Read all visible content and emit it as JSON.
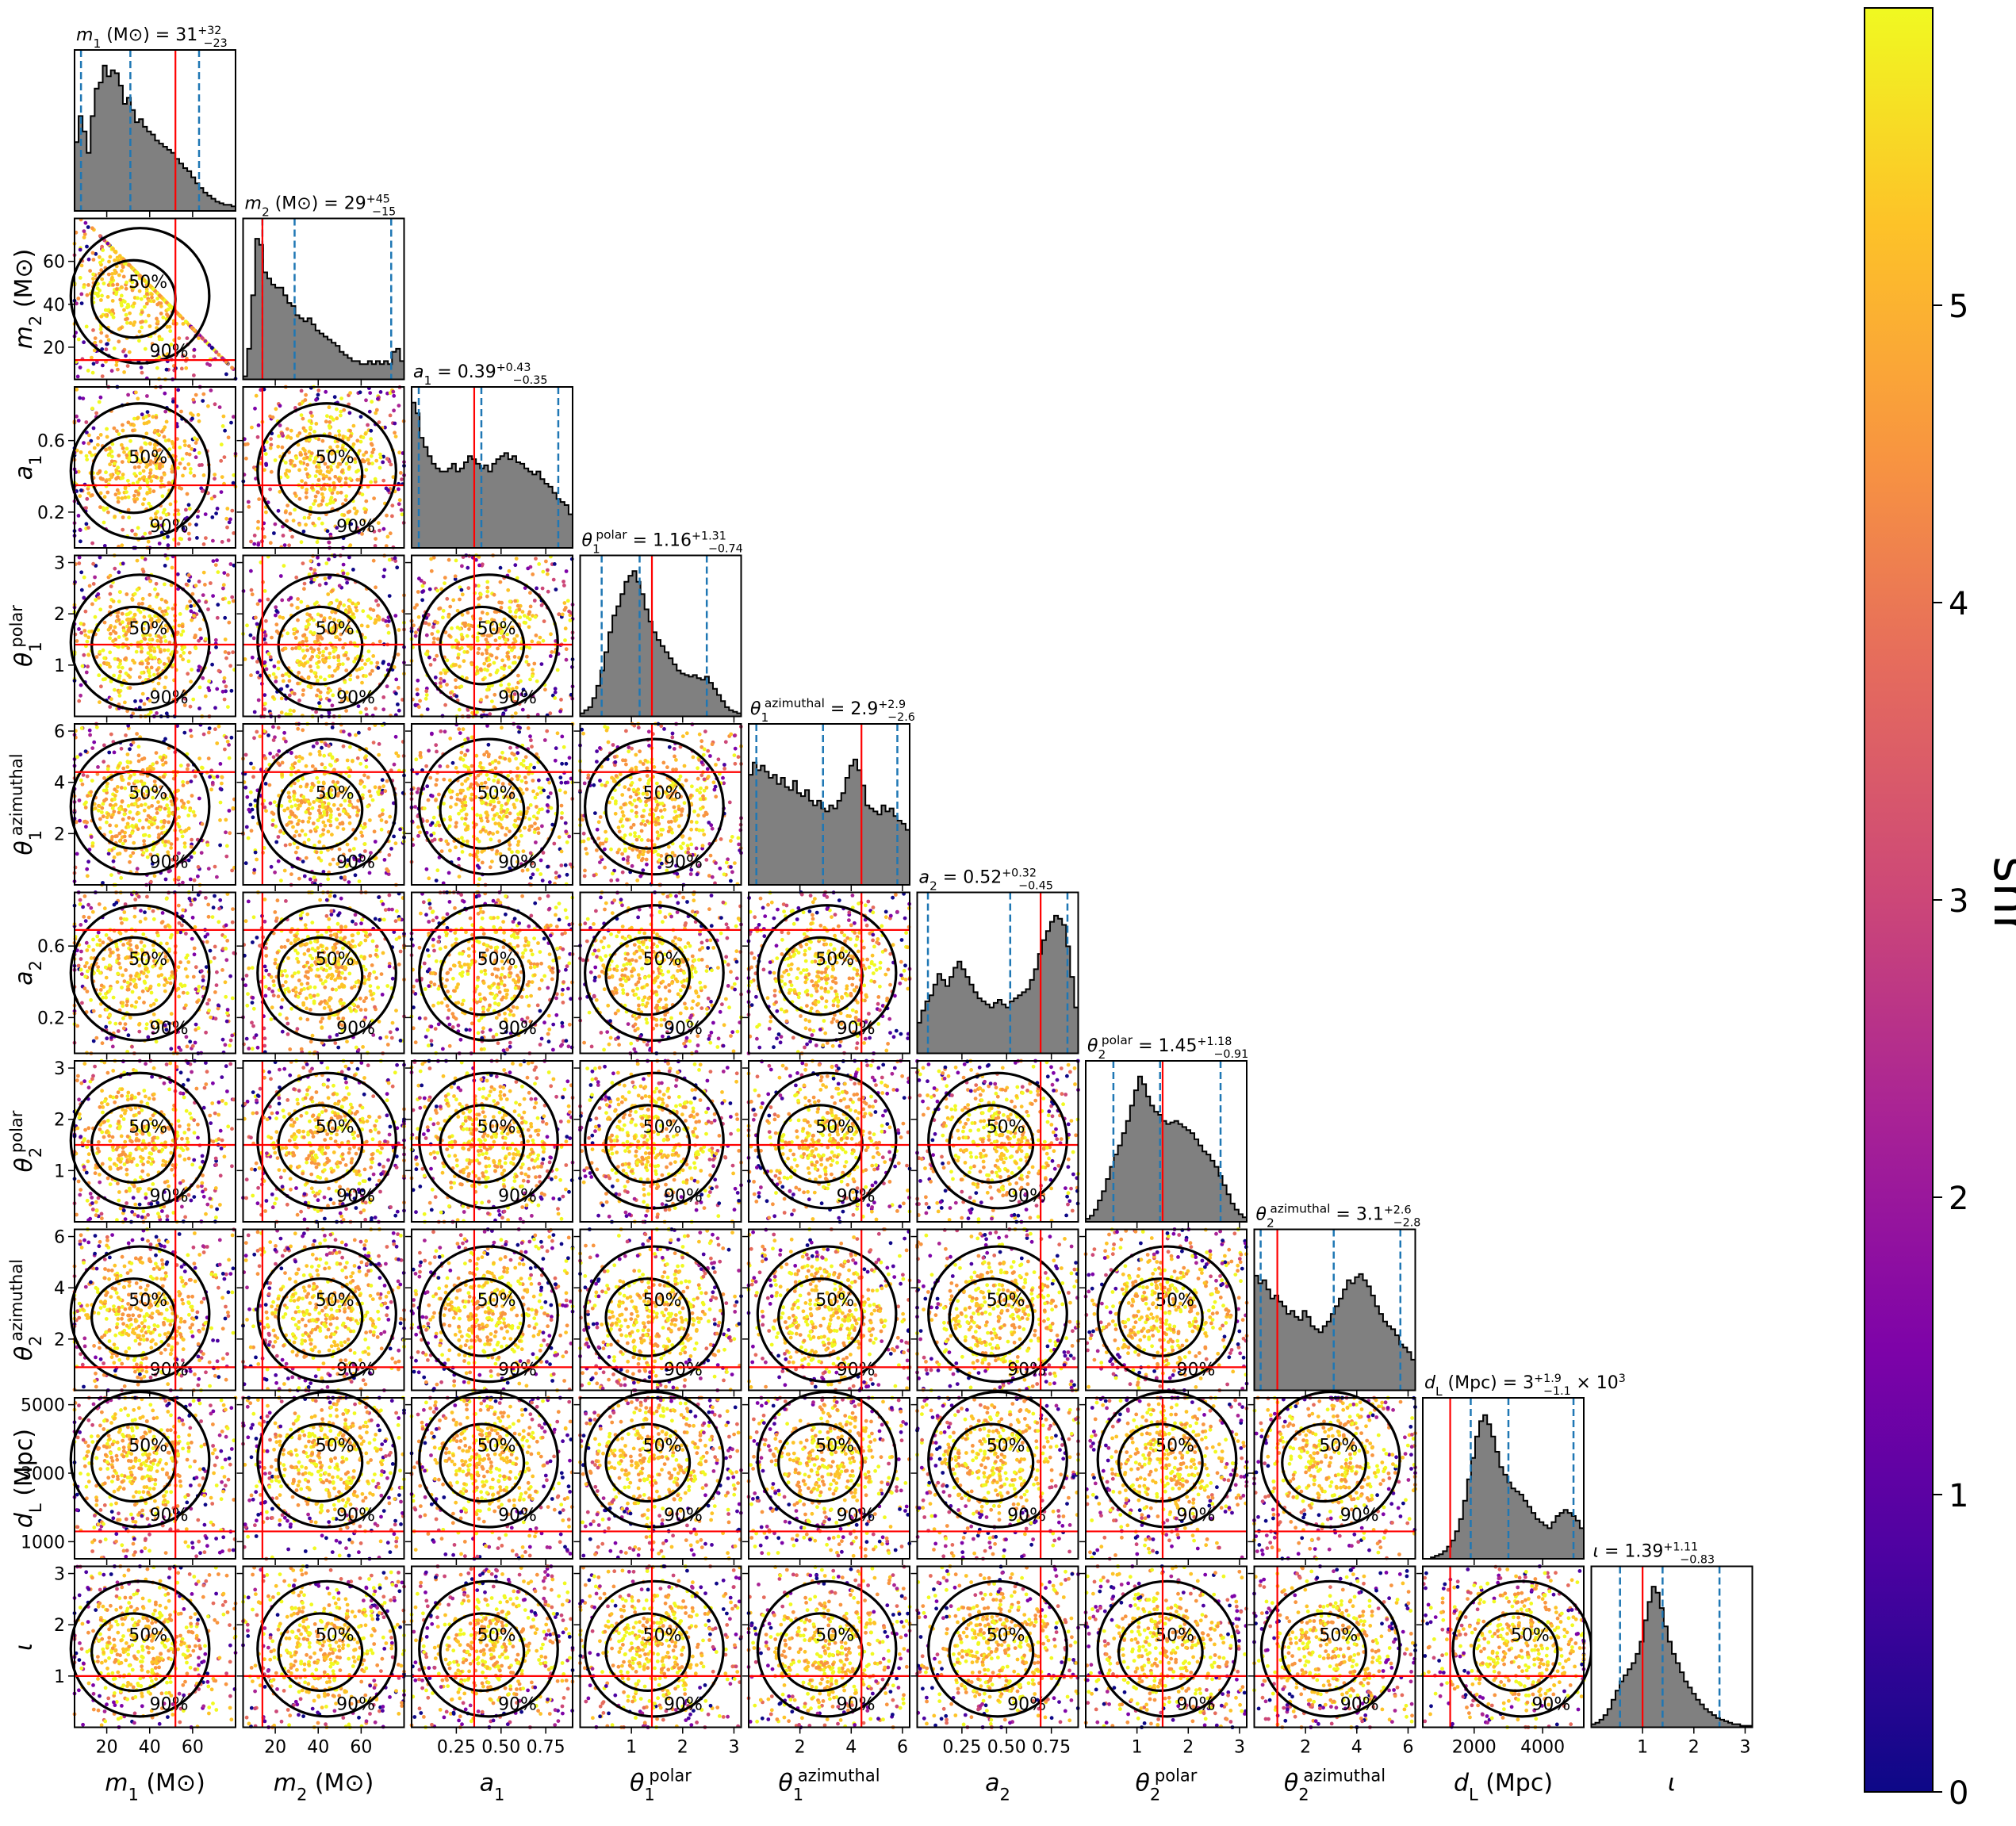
{
  "chart_data": {
    "type": "corner",
    "parameters": [
      {
        "key": "m1",
        "xlabel": "m₁ (M⊙)",
        "ylabel": "m₂ (M⊙)",
        "symbol": "m",
        "sub": "1",
        "suffix": " (M⊙)",
        "title": "m₁ (M⊙) = 31",
        "median": 31,
        "plus": "32",
        "minus": "23",
        "range": [
          5,
          80
        ],
        "ticks": [
          20,
          40,
          60
        ],
        "tick_labels": [
          "20",
          "40",
          "60"
        ],
        "truth": 52,
        "q_lo": 8,
        "q_hi": 63,
        "hist": [
          0.45,
          0.62,
          0.52,
          0.38,
          0.62,
          0.8,
          0.84,
          0.95,
          0.88,
          0.92,
          0.9,
          0.82,
          0.7,
          0.74,
          0.66,
          0.58,
          0.6,
          0.55,
          0.52,
          0.5,
          0.46,
          0.44,
          0.42,
          0.4,
          0.38,
          0.34,
          0.31,
          0.28,
          0.26,
          0.22,
          0.18,
          0.15,
          0.12,
          0.1,
          0.08,
          0.06,
          0.05,
          0.04,
          0.04,
          0.03
        ]
      },
      {
        "key": "m2",
        "xlabel": "m₂ (M⊙)",
        "symbol": "m",
        "sub": "2",
        "suffix": " (M⊙)",
        "title": "m₂ (M⊙) = 29",
        "median": 29,
        "plus": "45",
        "minus": "15",
        "range": [
          5,
          80
        ],
        "ticks": [
          20,
          40,
          60
        ],
        "tick_labels": [
          "20",
          "40",
          "60"
        ],
        "truth": 14,
        "q_lo": 14,
        "q_hi": 74,
        "hist": [
          0.02,
          0.2,
          0.55,
          0.92,
          0.88,
          0.7,
          0.66,
          0.62,
          0.6,
          0.6,
          0.55,
          0.5,
          0.48,
          0.42,
          0.4,
          0.38,
          0.4,
          0.36,
          0.32,
          0.3,
          0.28,
          0.26,
          0.24,
          0.22,
          0.18,
          0.16,
          0.14,
          0.12,
          0.12,
          0.1,
          0.1,
          0.12,
          0.1,
          0.12,
          0.1,
          0.12,
          0.1,
          0.18,
          0.2,
          0.12
        ]
      },
      {
        "key": "a1",
        "xlabel": "a₁",
        "symbol": "a",
        "sub": "1",
        "suffix": "",
        "title": "a₁ = 0.39",
        "median": 0.39,
        "plus": "0.43",
        "minus": "0.35",
        "range": [
          0,
          0.9
        ],
        "ticks": [
          0.25,
          0.5,
          0.75
        ],
        "tick_labels": [
          "0.25",
          "0.50",
          "0.75"
        ],
        "y_ticks": [
          0.2,
          0.6
        ],
        "y_tick_labels": [
          "0.2",
          "0.6"
        ],
        "truth": 0.35,
        "q_lo": 0.04,
        "q_hi": 0.82,
        "hist": [
          0.95,
          0.88,
          0.72,
          0.66,
          0.6,
          0.55,
          0.52,
          0.5,
          0.5,
          0.52,
          0.55,
          0.5,
          0.52,
          0.56,
          0.6,
          0.58,
          0.55,
          0.52,
          0.54,
          0.5,
          0.55,
          0.58,
          0.6,
          0.62,
          0.58,
          0.6,
          0.56,
          0.55,
          0.52,
          0.5,
          0.48,
          0.5,
          0.45,
          0.42,
          0.4,
          0.36,
          0.32,
          0.3,
          0.28,
          0.22
        ]
      },
      {
        "key": "t1p",
        "xlabel": "θ₁ polar",
        "symbol": "θ",
        "sub": "1",
        "sup": "polar",
        "suffix": "",
        "title": "θ₁polar = 1.16",
        "median": 1.16,
        "plus": "1.31",
        "minus": "0.74",
        "range": [
          0,
          3.14
        ],
        "ticks": [
          1,
          2,
          3
        ],
        "tick_labels": [
          "1",
          "2",
          "3"
        ],
        "truth": 1.4,
        "q_lo": 0.42,
        "q_hi": 2.47,
        "hist": [
          0.02,
          0.04,
          0.06,
          0.12,
          0.2,
          0.3,
          0.42,
          0.55,
          0.66,
          0.72,
          0.8,
          0.88,
          0.92,
          0.95,
          0.88,
          0.8,
          0.7,
          0.62,
          0.55,
          0.5,
          0.46,
          0.42,
          0.38,
          0.34,
          0.3,
          0.28,
          0.27,
          0.26,
          0.27,
          0.25,
          0.24,
          0.26,
          0.22,
          0.18,
          0.14,
          0.1,
          0.06,
          0.04,
          0.03,
          0.02
        ]
      },
      {
        "key": "t1a",
        "xlabel": "θ₁ azimuthal",
        "symbol": "θ",
        "sub": "1",
        "sup": "azimuthal",
        "suffix": "",
        "title": "θ₁azimuthal = 2.9",
        "median": 2.9,
        "plus": "2.9",
        "minus": "2.6",
        "range": [
          0,
          6.28
        ],
        "ticks": [
          2,
          4,
          6
        ],
        "tick_labels": [
          "2",
          "4",
          "6"
        ],
        "truth": 4.4,
        "q_lo": 0.3,
        "q_hi": 5.8,
        "hist": [
          0.72,
          0.8,
          0.75,
          0.78,
          0.74,
          0.7,
          0.72,
          0.66,
          0.7,
          0.64,
          0.62,
          0.68,
          0.6,
          0.58,
          0.62,
          0.55,
          0.52,
          0.55,
          0.5,
          0.48,
          0.52,
          0.5,
          0.55,
          0.6,
          0.7,
          0.78,
          0.82,
          0.75,
          0.65,
          0.52,
          0.5,
          0.48,
          0.46,
          0.52,
          0.48,
          0.5,
          0.45,
          0.42,
          0.4,
          0.36
        ]
      },
      {
        "key": "a2",
        "xlabel": "a₂",
        "symbol": "a",
        "sub": "2",
        "suffix": "",
        "title": "a₂ = 0.52",
        "median": 0.52,
        "plus": "0.32",
        "minus": "0.45",
        "range": [
          0,
          0.9
        ],
        "ticks": [
          0.25,
          0.5,
          0.75
        ],
        "tick_labels": [
          "0.25",
          "0.50",
          "0.75"
        ],
        "y_ticks": [
          0.2,
          0.6
        ],
        "y_tick_labels": [
          "0.2",
          "0.6"
        ],
        "truth": 0.69,
        "q_lo": 0.06,
        "q_hi": 0.84,
        "hist": [
          0.2,
          0.28,
          0.34,
          0.38,
          0.45,
          0.52,
          0.48,
          0.44,
          0.5,
          0.56,
          0.6,
          0.55,
          0.5,
          0.45,
          0.4,
          0.36,
          0.34,
          0.32,
          0.3,
          0.33,
          0.35,
          0.32,
          0.3,
          0.34,
          0.36,
          0.38,
          0.4,
          0.42,
          0.48,
          0.55,
          0.65,
          0.74,
          0.8,
          0.86,
          0.9,
          0.88,
          0.84,
          0.7,
          0.5,
          0.3
        ]
      },
      {
        "key": "t2p",
        "xlabel": "θ₂ polar",
        "symbol": "θ",
        "sub": "2",
        "sup": "polar",
        "suffix": "",
        "title": "θ₂polar = 1.45",
        "median": 1.45,
        "plus": "1.18",
        "minus": "0.91",
        "range": [
          0,
          3.14
        ],
        "ticks": [
          1,
          2,
          3
        ],
        "tick_labels": [
          "1",
          "2",
          "3"
        ],
        "truth": 1.5,
        "q_lo": 0.54,
        "q_hi": 2.63,
        "hist": [
          0.02,
          0.04,
          0.08,
          0.14,
          0.2,
          0.28,
          0.36,
          0.44,
          0.5,
          0.58,
          0.66,
          0.76,
          0.86,
          0.95,
          0.9,
          0.82,
          0.76,
          0.72,
          0.7,
          0.66,
          0.64,
          0.65,
          0.66,
          0.64,
          0.62,
          0.6,
          0.58,
          0.54,
          0.5,
          0.46,
          0.44,
          0.4,
          0.36,
          0.3,
          0.24,
          0.18,
          0.12,
          0.08,
          0.05,
          0.03
        ]
      },
      {
        "key": "t2a",
        "xlabel": "θ₂ azimuthal",
        "symbol": "θ",
        "sub": "2",
        "sup": "azimuthal",
        "suffix": "",
        "title": "θ₂azimuthal = 3.1",
        "median": 3.1,
        "plus": "2.6",
        "minus": "2.8",
        "range": [
          0,
          6.28
        ],
        "ticks": [
          2,
          4,
          6
        ],
        "tick_labels": [
          "2",
          "4",
          "6"
        ],
        "truth": 0.9,
        "q_lo": 0.25,
        "q_hi": 5.7,
        "hist": [
          0.75,
          0.7,
          0.72,
          0.66,
          0.6,
          0.62,
          0.58,
          0.55,
          0.5,
          0.52,
          0.48,
          0.46,
          0.52,
          0.48,
          0.42,
          0.4,
          0.38,
          0.42,
          0.45,
          0.5,
          0.55,
          0.6,
          0.66,
          0.72,
          0.7,
          0.74,
          0.76,
          0.72,
          0.68,
          0.62,
          0.55,
          0.5,
          0.45,
          0.42,
          0.4,
          0.36,
          0.3,
          0.28,
          0.25,
          0.2
        ]
      },
      {
        "key": "dL",
        "xlabel": "d_L (Mpc)",
        "symbol": "d",
        "sub": "L",
        "suffix": " (Mpc)",
        "title": "d_L (Mpc) = 3",
        "median": 3000,
        "plus": "1.9",
        "minus": "1.1",
        "title_tail": "× 10",
        "title_exp": "3",
        "range": [
          500,
          5200
        ],
        "ticks": [
          2000,
          4000
        ],
        "tick_labels": [
          "2000",
          "4000"
        ],
        "y_ticks": [
          1000,
          3000,
          5000
        ],
        "y_tick_labels": [
          "1000",
          "3000",
          "5000"
        ],
        "truth": 1300,
        "q_lo": 1900,
        "q_hi": 4900,
        "hist": [
          0.0,
          0.0,
          0.01,
          0.02,
          0.03,
          0.05,
          0.08,
          0.12,
          0.18,
          0.26,
          0.38,
          0.52,
          0.66,
          0.8,
          0.9,
          0.94,
          0.88,
          0.8,
          0.7,
          0.6,
          0.55,
          0.5,
          0.46,
          0.44,
          0.42,
          0.38,
          0.34,
          0.3,
          0.26,
          0.24,
          0.22,
          0.2,
          0.24,
          0.28,
          0.3,
          0.32,
          0.3,
          0.28,
          0.25,
          0.2
        ]
      },
      {
        "key": "iota",
        "xlabel": "ι",
        "symbol": "ι",
        "sub": "",
        "suffix": "",
        "title": "ι = 1.39",
        "median": 1.39,
        "plus": "1.11",
        "minus": "0.83",
        "range": [
          0,
          3.14
        ],
        "ticks": [
          1,
          2,
          3
        ],
        "tick_labels": [
          "1",
          "2",
          "3"
        ],
        "truth": 1.0,
        "q_lo": 0.56,
        "q_hi": 2.5,
        "hist": [
          0.02,
          0.03,
          0.05,
          0.08,
          0.12,
          0.18,
          0.24,
          0.3,
          0.34,
          0.38,
          0.42,
          0.48,
          0.56,
          0.7,
          0.82,
          0.92,
          0.88,
          0.78,
          0.66,
          0.56,
          0.48,
          0.42,
          0.36,
          0.3,
          0.26,
          0.22,
          0.18,
          0.15,
          0.12,
          0.1,
          0.08,
          0.06,
          0.05,
          0.04,
          0.03,
          0.02,
          0.02,
          0.01,
          0.01,
          0.01
        ]
      }
    ],
    "contour_levels": [
      "50%",
      "90%"
    ],
    "colorbar": {
      "label": "snr",
      "min": 0,
      "max": 6,
      "ticks": [
        0,
        1,
        2,
        3,
        4,
        5
      ],
      "tick_labels": [
        "0",
        "1",
        "2",
        "3",
        "4",
        "5"
      ],
      "colormap": "plasma"
    },
    "colors": {
      "hist_fill": "#808080",
      "hist_edge": "#000000",
      "truth_line": "#ff0000",
      "quantile_line": "#1f77b4",
      "contour": "#000000"
    }
  }
}
